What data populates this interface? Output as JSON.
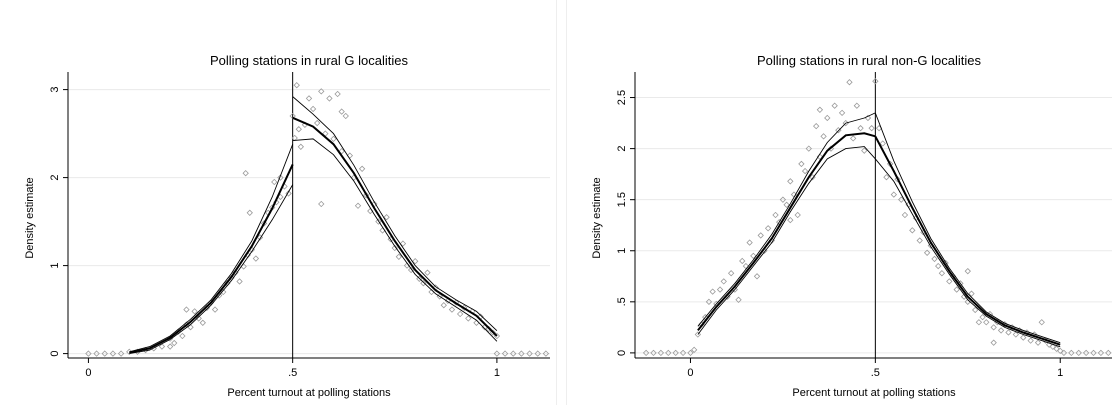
{
  "chart_data": [
    {
      "type": "scatter",
      "title": "Polling stations in rural G localities",
      "xlabel": "Percent turnout at polling stations",
      "ylabel": "Density estimate",
      "xlim": [
        -0.05,
        1.13
      ],
      "ylim": [
        -0.05,
        3.2
      ],
      "xticks": [
        {
          "v": 0,
          "label": "0"
        },
        {
          "v": 0.5,
          "label": ".5"
        },
        {
          "v": 1,
          "label": "1"
        }
      ],
      "yticks": [
        {
          "v": 0,
          "label": "0"
        },
        {
          "v": 1,
          "label": "1"
        },
        {
          "v": 2,
          "label": "2"
        },
        {
          "v": 3,
          "label": "3"
        }
      ],
      "cutoff": 0.5,
      "grid": true,
      "curve_left": {
        "x": [
          0.1,
          0.15,
          0.2,
          0.25,
          0.3,
          0.35,
          0.4,
          0.45,
          0.5
        ],
        "est": [
          0.01,
          0.06,
          0.18,
          0.36,
          0.58,
          0.87,
          1.22,
          1.65,
          2.15
        ],
        "lower": [
          0.0,
          0.04,
          0.16,
          0.33,
          0.55,
          0.83,
          1.16,
          1.52,
          1.92
        ],
        "upper": [
          0.02,
          0.08,
          0.2,
          0.39,
          0.61,
          0.91,
          1.28,
          1.78,
          2.38
        ]
      },
      "curve_right": {
        "x": [
          0.5,
          0.55,
          0.6,
          0.65,
          0.7,
          0.75,
          0.8,
          0.85,
          0.9,
          0.95,
          1.0
        ],
        "est": [
          2.68,
          2.58,
          2.38,
          2.05,
          1.65,
          1.28,
          0.95,
          0.72,
          0.57,
          0.43,
          0.2
        ],
        "lower": [
          2.42,
          2.44,
          2.26,
          1.96,
          1.58,
          1.22,
          0.9,
          0.68,
          0.53,
          0.38,
          0.14
        ],
        "upper": [
          2.92,
          2.72,
          2.5,
          2.14,
          1.72,
          1.34,
          1.0,
          0.76,
          0.61,
          0.48,
          0.26
        ]
      },
      "points": [
        [
          0.0,
          0
        ],
        [
          0.02,
          0
        ],
        [
          0.04,
          0
        ],
        [
          0.06,
          0
        ],
        [
          0.08,
          0
        ],
        [
          0.1,
          0.02
        ],
        [
          0.12,
          0.02
        ],
        [
          0.14,
          0.04
        ],
        [
          0.16,
          0.06
        ],
        [
          0.18,
          0.08
        ],
        [
          0.2,
          0.17
        ],
        [
          0.21,
          0.12
        ],
        [
          0.22,
          0.25
        ],
        [
          0.23,
          0.2
        ],
        [
          0.24,
          0.33
        ],
        [
          0.25,
          0.3
        ],
        [
          0.26,
          0.48
        ],
        [
          0.27,
          0.4
        ],
        [
          0.28,
          0.35
        ],
        [
          0.29,
          0.52
        ],
        [
          0.3,
          0.58
        ],
        [
          0.31,
          0.5
        ],
        [
          0.32,
          0.66
        ],
        [
          0.33,
          0.7
        ],
        [
          0.34,
          0.8
        ],
        [
          0.35,
          0.86
        ],
        [
          0.36,
          0.92
        ],
        [
          0.37,
          0.82
        ],
        [
          0.38,
          0.99
        ],
        [
          0.39,
          1.12
        ],
        [
          0.4,
          1.18
        ],
        [
          0.41,
          1.08
        ],
        [
          0.42,
          1.32
        ],
        [
          0.43,
          1.48
        ],
        [
          0.44,
          1.6
        ],
        [
          0.45,
          1.66
        ],
        [
          0.46,
          1.72
        ],
        [
          0.47,
          1.78
        ],
        [
          0.48,
          1.9
        ],
        [
          0.49,
          1.82
        ],
        [
          0.385,
          2.05
        ],
        [
          0.395,
          1.6
        ],
        [
          0.455,
          1.95
        ],
        [
          0.47,
          2.0
        ],
        [
          0.2,
          0.08
        ],
        [
          0.24,
          0.5
        ],
        [
          0.5,
          2.7
        ],
        [
          0.505,
          2.45
        ],
        [
          0.51,
          3.05
        ],
        [
          0.515,
          2.55
        ],
        [
          0.52,
          2.35
        ],
        [
          0.53,
          2.6
        ],
        [
          0.54,
          2.9
        ],
        [
          0.55,
          2.78
        ],
        [
          0.56,
          2.62
        ],
        [
          0.57,
          2.98
        ],
        [
          0.58,
          2.5
        ],
        [
          0.59,
          2.9
        ],
        [
          0.6,
          2.44
        ],
        [
          0.61,
          2.95
        ],
        [
          0.62,
          2.3
        ],
        [
          0.63,
          2.7
        ],
        [
          0.64,
          2.25
        ],
        [
          0.65,
          2.0
        ],
        [
          0.66,
          1.68
        ],
        [
          0.67,
          2.1
        ],
        [
          0.68,
          1.8
        ],
        [
          0.69,
          1.62
        ],
        [
          0.7,
          1.7
        ],
        [
          0.71,
          1.5
        ],
        [
          0.72,
          1.4
        ],
        [
          0.73,
          1.55
        ],
        [
          0.74,
          1.3
        ],
        [
          0.75,
          1.2
        ],
        [
          0.76,
          1.1
        ],
        [
          0.77,
          1.25
        ],
        [
          0.78,
          1.0
        ],
        [
          0.79,
          0.95
        ],
        [
          0.8,
          1.05
        ],
        [
          0.81,
          0.85
        ],
        [
          0.82,
          0.8
        ],
        [
          0.83,
          0.92
        ],
        [
          0.84,
          0.7
        ],
        [
          0.85,
          0.75
        ],
        [
          0.86,
          0.65
        ],
        [
          0.87,
          0.55
        ],
        [
          0.88,
          0.6
        ],
        [
          0.89,
          0.5
        ],
        [
          0.9,
          0.58
        ],
        [
          0.91,
          0.45
        ],
        [
          0.92,
          0.52
        ],
        [
          0.93,
          0.4
        ],
        [
          0.94,
          0.48
        ],
        [
          0.95,
          0.35
        ],
        [
          0.96,
          0.42
        ],
        [
          0.97,
          0.3
        ],
        [
          0.98,
          0.28
        ],
        [
          0.99,
          0.24
        ],
        [
          1.0,
          0.2
        ],
        [
          0.57,
          1.7
        ],
        [
          0.62,
          2.75
        ],
        [
          1.0,
          0
        ],
        [
          1.02,
          0
        ],
        [
          1.04,
          0
        ],
        [
          1.06,
          0
        ],
        [
          1.08,
          0
        ],
        [
          1.1,
          0
        ],
        [
          1.12,
          0
        ]
      ]
    },
    {
      "type": "scatter",
      "title": "Polling stations in rural non-G localities",
      "xlabel": "Percent turnout at polling stations",
      "ylabel": "Density estimate",
      "xlim": [
        -0.15,
        1.14
      ],
      "ylim": [
        -0.05,
        2.75
      ],
      "xticks": [
        {
          "v": 0,
          "label": "0"
        },
        {
          "v": 0.5,
          "label": ".5"
        },
        {
          "v": 1,
          "label": "1"
        }
      ],
      "yticks": [
        {
          "v": 0,
          "label": "0"
        },
        {
          "v": 0.5,
          "label": ".5"
        },
        {
          "v": 1,
          "label": "1"
        },
        {
          "v": 1.5,
          "label": "1.5"
        },
        {
          "v": 2,
          "label": "2"
        },
        {
          "v": 2.5,
          "label": "2.5"
        }
      ],
      "cutoff": 0.5,
      "grid": true,
      "curve_left": {
        "x": [
          0.02,
          0.07,
          0.12,
          0.17,
          0.22,
          0.27,
          0.32,
          0.37,
          0.42,
          0.47,
          0.5
        ],
        "est": [
          0.22,
          0.45,
          0.65,
          0.88,
          1.12,
          1.42,
          1.72,
          1.98,
          2.13,
          2.15,
          2.12
        ],
        "lower": [
          0.18,
          0.42,
          0.62,
          0.85,
          1.08,
          1.38,
          1.66,
          1.9,
          2.0,
          2.02,
          1.9
        ],
        "upper": [
          0.26,
          0.48,
          0.68,
          0.91,
          1.16,
          1.46,
          1.78,
          2.06,
          2.25,
          2.3,
          2.35
        ]
      },
      "curve_right": {
        "x": [
          0.5,
          0.55,
          0.6,
          0.65,
          0.7,
          0.75,
          0.8,
          0.85,
          0.9,
          0.95,
          1.0
        ],
        "est": [
          2.12,
          1.78,
          1.42,
          1.08,
          0.8,
          0.55,
          0.38,
          0.27,
          0.2,
          0.14,
          0.08
        ],
        "lower": [
          1.9,
          1.68,
          1.36,
          1.04,
          0.77,
          0.52,
          0.36,
          0.25,
          0.18,
          0.12,
          0.06
        ],
        "upper": [
          2.35,
          1.88,
          1.48,
          1.12,
          0.83,
          0.58,
          0.4,
          0.29,
          0.22,
          0.16,
          0.1
        ]
      },
      "points": [
        [
          -0.12,
          0
        ],
        [
          -0.1,
          0
        ],
        [
          -0.08,
          0
        ],
        [
          -0.06,
          0
        ],
        [
          -0.04,
          0
        ],
        [
          -0.02,
          0
        ],
        [
          0,
          0
        ],
        [
          0.01,
          0.03
        ],
        [
          0.02,
          0.18
        ],
        [
          0.03,
          0.28
        ],
        [
          0.04,
          0.35
        ],
        [
          0.05,
          0.5
        ],
        [
          0.06,
          0.6
        ],
        [
          0.07,
          0.48
        ],
        [
          0.08,
          0.62
        ],
        [
          0.09,
          0.7
        ],
        [
          0.1,
          0.55
        ],
        [
          0.11,
          0.78
        ],
        [
          0.12,
          0.62
        ],
        [
          0.13,
          0.52
        ],
        [
          0.14,
          0.9
        ],
        [
          0.15,
          0.85
        ],
        [
          0.16,
          1.08
        ],
        [
          0.17,
          0.95
        ],
        [
          0.18,
          0.75
        ],
        [
          0.19,
          1.15
        ],
        [
          0.2,
          1.0
        ],
        [
          0.21,
          1.22
        ],
        [
          0.22,
          1.1
        ],
        [
          0.23,
          1.35
        ],
        [
          0.24,
          1.28
        ],
        [
          0.25,
          1.5
        ],
        [
          0.26,
          1.45
        ],
        [
          0.27,
          1.68
        ],
        [
          0.28,
          1.55
        ],
        [
          0.29,
          1.35
        ],
        [
          0.3,
          1.85
        ],
        [
          0.31,
          1.78
        ],
        [
          0.32,
          2.0
        ],
        [
          0.33,
          1.72
        ],
        [
          0.34,
          2.22
        ],
        [
          0.35,
          1.92
        ],
        [
          0.36,
          2.12
        ],
        [
          0.37,
          2.3
        ],
        [
          0.38,
          2.0
        ],
        [
          0.39,
          2.42
        ],
        [
          0.4,
          2.18
        ],
        [
          0.41,
          2.35
        ],
        [
          0.42,
          2.25
        ],
        [
          0.43,
          2.65
        ],
        [
          0.44,
          2.1
        ],
        [
          0.45,
          2.42
        ],
        [
          0.46,
          2.2
        ],
        [
          0.47,
          1.98
        ],
        [
          0.48,
          2.3
        ],
        [
          0.49,
          2.2
        ],
        [
          0.5,
          2.66
        ],
        [
          0.27,
          1.3
        ],
        [
          0.35,
          2.38
        ],
        [
          0.51,
          2.2
        ],
        [
          0.52,
          2.05
        ],
        [
          0.53,
          1.72
        ],
        [
          0.54,
          1.85
        ],
        [
          0.55,
          1.55
        ],
        [
          0.56,
          1.7
        ],
        [
          0.57,
          1.5
        ],
        [
          0.58,
          1.35
        ],
        [
          0.59,
          1.45
        ],
        [
          0.6,
          1.2
        ],
        [
          0.61,
          1.32
        ],
        [
          0.62,
          1.1
        ],
        [
          0.63,
          1.18
        ],
        [
          0.64,
          0.98
        ],
        [
          0.65,
          1.05
        ],
        [
          0.66,
          0.92
        ],
        [
          0.67,
          0.85
        ],
        [
          0.68,
          0.78
        ],
        [
          0.69,
          0.88
        ],
        [
          0.7,
          0.7
        ],
        [
          0.71,
          0.75
        ],
        [
          0.72,
          0.62
        ],
        [
          0.73,
          0.68
        ],
        [
          0.74,
          0.55
        ],
        [
          0.75,
          0.5
        ],
        [
          0.76,
          0.58
        ],
        [
          0.77,
          0.42
        ],
        [
          0.78,
          0.3
        ],
        [
          0.79,
          0.35
        ],
        [
          0.8,
          0.3
        ],
        [
          0.81,
          0.38
        ],
        [
          0.82,
          0.25
        ],
        [
          0.83,
          0.3
        ],
        [
          0.84,
          0.22
        ],
        [
          0.85,
          0.28
        ],
        [
          0.86,
          0.2
        ],
        [
          0.87,
          0.25
        ],
        [
          0.88,
          0.18
        ],
        [
          0.89,
          0.22
        ],
        [
          0.9,
          0.15
        ],
        [
          0.91,
          0.2
        ],
        [
          0.92,
          0.12
        ],
        [
          0.93,
          0.18
        ],
        [
          0.94,
          0.1
        ],
        [
          0.95,
          0.3
        ],
        [
          0.96,
          0.12
        ],
        [
          0.97,
          0.08
        ],
        [
          0.98,
          0.06
        ],
        [
          0.99,
          0.04
        ],
        [
          1.0,
          0.02
        ],
        [
          0.75,
          0.8
        ],
        [
          0.82,
          0.1
        ],
        [
          1.01,
          0
        ],
        [
          1.03,
          0
        ],
        [
          1.05,
          0
        ],
        [
          1.07,
          0
        ],
        [
          1.09,
          0
        ],
        [
          1.11,
          0
        ],
        [
          1.13,
          0
        ]
      ]
    }
  ]
}
